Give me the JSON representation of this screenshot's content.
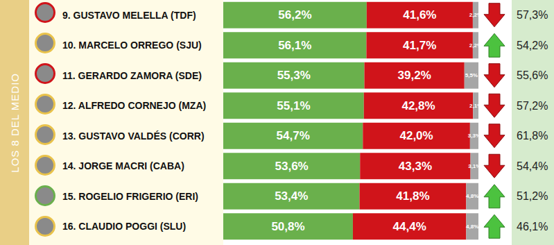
{
  "chart_data": {
    "type": "bar",
    "orientation": "horizontal",
    "stacked": true,
    "data_labels": true,
    "tick_labels": false,
    "grid": false,
    "annotations": [
      "LOS 8 DEL MEDIO"
    ],
    "categories": [
      "9. GUSTAVO MELELLA (TDF)",
      "10. MARCELO ORREGO (SJU)",
      "11. GERARDO ZAMORA (SDE)",
      "12. ALFREDO CORNEJO (MZA)",
      "13. GUSTAVO VALDÉS (CORR)",
      "14. JORGE MACRI (CABA)",
      "15. ROGELIO FRIGERIO (ERI)",
      "16. CLAUDIO POGGI (SLU)"
    ],
    "xlim": [
      0,
      100
    ],
    "series": [
      {
        "color": "#6ab04c",
        "values": [
          56.2,
          56.1,
          55.3,
          55.1,
          54.7,
          53.6,
          53.4,
          50.8
        ],
        "value_labels": [
          "56,2%",
          "56,1%",
          "55,3%",
          "55,1%",
          "54,7%",
          "53,6%",
          "53,4%",
          "50,8%"
        ]
      },
      {
        "color": "#d0141a",
        "values": [
          41.6,
          41.7,
          39.2,
          42.8,
          42.0,
          43.3,
          41.8,
          44.4
        ],
        "value_labels": [
          "41,6%",
          "41,7%",
          "39,2%",
          "42,8%",
          "42,0%",
          "43,3%",
          "41,8%",
          "44,4%"
        ]
      },
      {
        "color": "#a6a6a6",
        "values": [
          2.2,
          2.2,
          5.5,
          2.1,
          3.3,
          3.1,
          4.8,
          4.8
        ],
        "value_labels": [
          "2,2%",
          "2,2%",
          "5,5%",
          "2,1%",
          "3,3%",
          "3,1%",
          "4,8%",
          "4,8%"
        ]
      }
    ],
    "previous": {
      "values": [
        57.3,
        54.2,
        55.6,
        57.2,
        61.8,
        54.4,
        51.2,
        46.1
      ],
      "value_labels": [
        "57,3%",
        "54,2%",
        "55,6%",
        "57,2%",
        "61,8%",
        "54,4%",
        "51,2%",
        "46,1%"
      ]
    }
  }
}
